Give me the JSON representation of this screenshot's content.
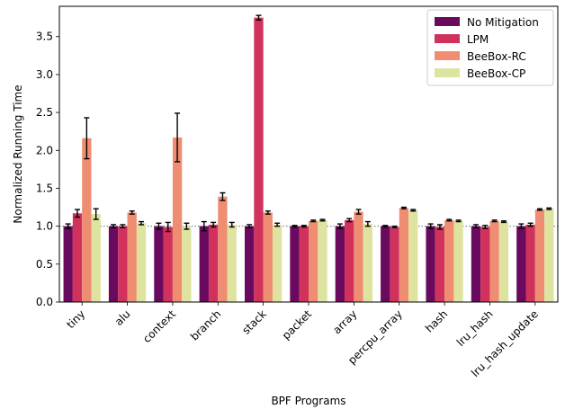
{
  "chart_data": {
    "type": "bar",
    "xlabel": "BPF Programs",
    "ylabel": "Normalized Running Time",
    "ylim": [
      0,
      3.9
    ],
    "yticks": [
      "0.0",
      "0.5",
      "1.0",
      "1.5",
      "2.0",
      "2.5",
      "3.0",
      "3.5"
    ],
    "reference_line": 1.0,
    "legend_position": "top-right",
    "categories": [
      "tiny",
      "alu",
      "context",
      "branch",
      "stack",
      "packet",
      "array",
      "percpu_array",
      "hash",
      "lru_hash",
      "lru_hash_update"
    ],
    "series": [
      {
        "name": "No Mitigation",
        "color": "#6a0a5e",
        "values": [
          1.0,
          1.0,
          1.0,
          1.0,
          1.0,
          1.0,
          1.0,
          1.0,
          1.0,
          1.0,
          1.0
        ],
        "errors": [
          0.03,
          0.02,
          0.04,
          0.06,
          0.02,
          0.01,
          0.03,
          0.01,
          0.03,
          0.02,
          0.03
        ]
      },
      {
        "name": "LPM",
        "color": "#d0325c",
        "values": [
          1.17,
          1.0,
          0.99,
          1.02,
          3.75,
          1.0,
          1.08,
          0.99,
          0.99,
          0.99,
          1.02
        ],
        "errors": [
          0.05,
          0.02,
          0.06,
          0.03,
          0.03,
          0.01,
          0.02,
          0.01,
          0.03,
          0.02,
          0.02
        ]
      },
      {
        "name": "BeeBox-RC",
        "color": "#ef8d72",
        "values": [
          2.16,
          1.18,
          2.17,
          1.39,
          1.18,
          1.07,
          1.19,
          1.24,
          1.08,
          1.07,
          1.22
        ],
        "errors": [
          0.27,
          0.02,
          0.32,
          0.05,
          0.02,
          0.01,
          0.03,
          0.01,
          0.01,
          0.01,
          0.01
        ]
      },
      {
        "name": "BeeBox-CP",
        "color": "#dfe3a0",
        "values": [
          1.16,
          1.04,
          1.0,
          1.02,
          1.02,
          1.08,
          1.03,
          1.21,
          1.07,
          1.06,
          1.23
        ],
        "errors": [
          0.07,
          0.02,
          0.04,
          0.03,
          0.02,
          0.01,
          0.03,
          0.01,
          0.01,
          0.01,
          0.01
        ]
      }
    ]
  }
}
